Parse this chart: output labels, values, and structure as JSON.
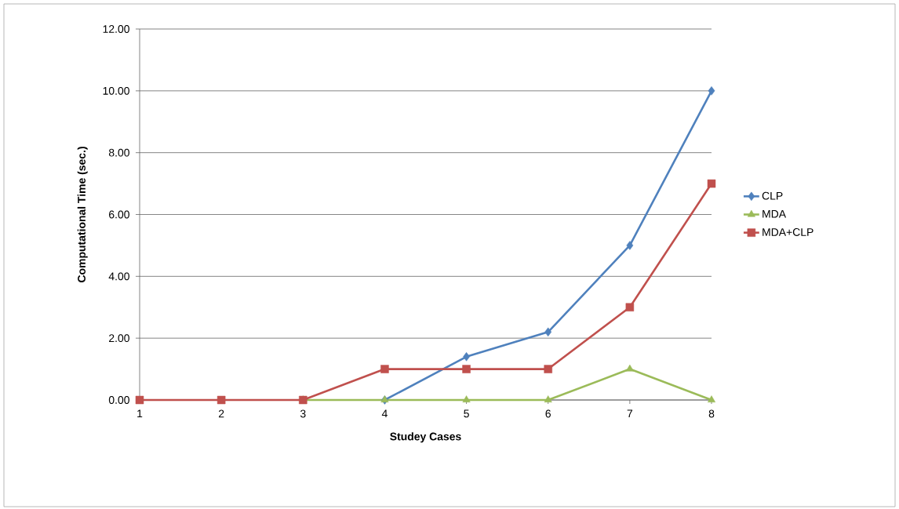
{
  "chart_data": {
    "type": "line",
    "xlabel": "Studey Cases",
    "ylabel": "Computational Time (sec.)",
    "categories": [
      "1",
      "2",
      "3",
      "4",
      "5",
      "6",
      "7",
      "8"
    ],
    "series": [
      {
        "name": "CLP",
        "color": "#4f81bd",
        "marker": "diamond",
        "values": [
          null,
          null,
          null,
          0,
          1.4,
          2.2,
          5,
          10
        ]
      },
      {
        "name": "MDA",
        "color": "#9bbb59",
        "marker": "triangle",
        "values": [
          null,
          null,
          0,
          0,
          0,
          0,
          1,
          0
        ]
      },
      {
        "name": "MDA+CLP",
        "color": "#c0504d",
        "marker": "square",
        "values": [
          0,
          0,
          0,
          1,
          1,
          1,
          3,
          7
        ]
      }
    ],
    "ylim": [
      0,
      12
    ],
    "yticks": [
      {
        "value": 0,
        "label": "0.00"
      },
      {
        "value": 2,
        "label": "2.00"
      },
      {
        "value": 4,
        "label": "4.00"
      },
      {
        "value": 6,
        "label": "6.00"
      },
      {
        "value": 8,
        "label": "8.00"
      },
      {
        "value": 10,
        "label": "10.00"
      },
      {
        "value": 12,
        "label": "12.00"
      }
    ],
    "grid": "y",
    "legend": "right",
    "line_style": "solid"
  }
}
